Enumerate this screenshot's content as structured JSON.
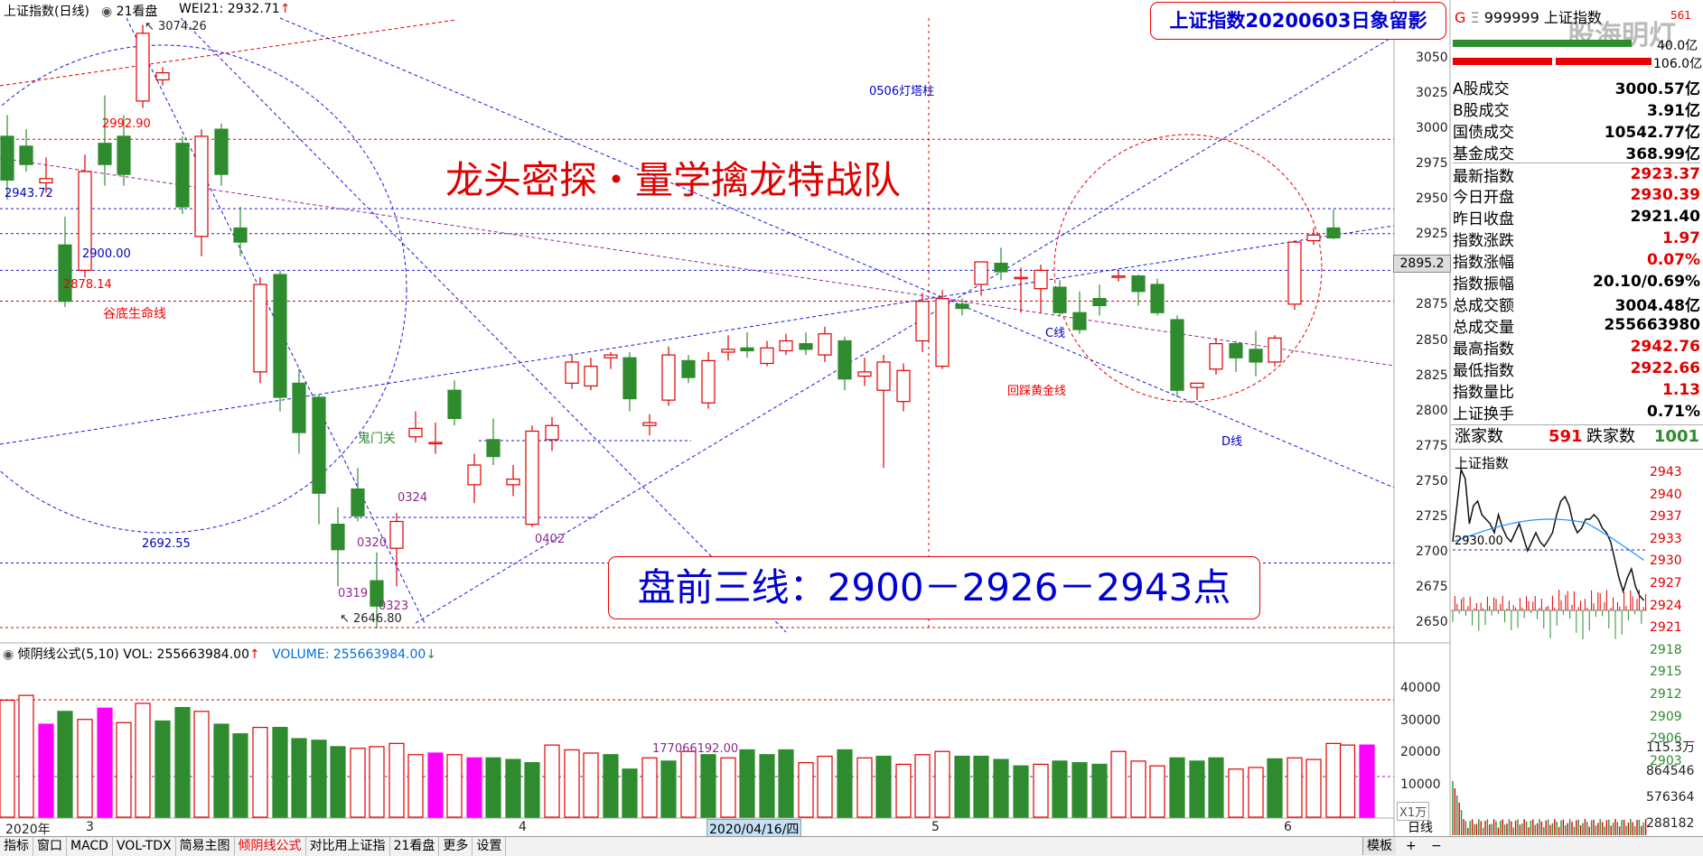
{
  "header": {
    "index_name": "上证指数(日线)",
    "period_label": "21看盘",
    "indicator": "WEI21: 2932.71",
    "indicator_arrow": "↑"
  },
  "title_box": "上证指数20200603日象留影",
  "watermark": "股海明灯",
  "banner_text": "龙头密探・量学擒龙特战队",
  "lines_box": "盘前三线：2900－2926－2943点",
  "annotations": {
    "high_label": "3074.26",
    "p2992": "2992.90",
    "p2943": "2943.72",
    "p2900": "2900.00",
    "p2878": "2878.14",
    "gudi": "谷底生命线",
    "guimen": "鬼门关",
    "p2692": "2692.55",
    "low_label": "2646.80",
    "d0319": "0319",
    "d0320": "0320",
    "d0323": "0323",
    "d0324": "0324",
    "d0402": "0402",
    "lighthouse": "0506灯塔柱",
    "huicai": "回踩黄金线",
    "c_line": "C线",
    "d_line": "D线"
  },
  "price_axis": {
    "ticks": [
      "3050",
      "3025",
      "3000",
      "2975",
      "2950",
      "2925",
      "2900",
      "2875",
      "2850",
      "2825",
      "2800",
      "2775",
      "2750",
      "2725",
      "2700",
      "2675",
      "2650"
    ],
    "current_price": "2895.2"
  },
  "volume_panel": {
    "title": "倾阴线公式(5,10)",
    "vol_label": "VOL: 255663984.00",
    "vol_arrow": "↑",
    "volume_label": "VOLUME: 255663984.00",
    "volume_arrow": "↓",
    "avg_label": "177066192.00",
    "ticks": [
      "40000",
      "30000",
      "20000",
      "10000"
    ],
    "unit": "X1万"
  },
  "date_axis": {
    "year": "2020年",
    "m3": "3",
    "m4": "4",
    "m5": "5",
    "m6": "6",
    "cursor_date": "2020/04/16/四"
  },
  "info_panel": {
    "code_prefix": "G",
    "code_e": "Ξ",
    "code": "999999",
    "name": "上证指数",
    "ratio": "561",
    "top_values": [
      "40.0亿",
      "106.0亿"
    ],
    "rows": [
      {
        "label": "A股成交",
        "value": "3000.57亿",
        "color": "#000"
      },
      {
        "label": "B股成交",
        "value": "3.91亿",
        "color": "#000"
      },
      {
        "label": "国债成交",
        "value": "10542.77亿",
        "color": "#000"
      },
      {
        "label": "基金成交",
        "value": "368.99亿",
        "color": "#000"
      },
      {
        "label": "最新指数",
        "value": "2923.37",
        "color": "#e00000"
      },
      {
        "label": "今日开盘",
        "value": "2930.39",
        "color": "#e00000"
      },
      {
        "label": "昨日收盘",
        "value": "2921.40",
        "color": "#000"
      },
      {
        "label": "指数涨跌",
        "value": "1.97",
        "color": "#e00000"
      },
      {
        "label": "指数涨幅",
        "value": "0.07%",
        "color": "#e00000"
      },
      {
        "label": "指数振幅",
        "value": "20.10/0.69%",
        "color": "#000"
      },
      {
        "label": "总成交额",
        "value": "3004.48亿",
        "color": "#000"
      },
      {
        "label": "总成交量",
        "value": "255663980",
        "color": "#000"
      },
      {
        "label": "最高指数",
        "value": "2942.76",
        "color": "#e00000"
      },
      {
        "label": "最低指数",
        "value": "2922.66",
        "color": "#e00000"
      },
      {
        "label": "指数量比",
        "value": "1.13",
        "color": "#e00000"
      },
      {
        "label": "上证换手",
        "value": "0.71%",
        "color": "#000"
      }
    ],
    "rise_label": "涨家数",
    "rise_value": "591",
    "fall_label": "跌家数",
    "fall_value": "1001"
  },
  "intraday": {
    "title": "上证指数",
    "price_ticks": [
      "2943",
      "2940",
      "2937",
      "2933",
      "2930",
      "2927",
      "2924",
      "2921",
      "2918",
      "2915",
      "2912",
      "2909",
      "2906",
      "2903"
    ],
    "ref_label": "2930.00",
    "vol_ticks": [
      "115.3万",
      "864546",
      "576364",
      "288182"
    ]
  },
  "menu": [
    "指标",
    "窗口",
    "MACD",
    "VOL-TDX",
    "简易主图",
    "倾阴线公式",
    "对比用上证指",
    "21看盘",
    "更多",
    "设置"
  ],
  "bottom_right": {
    "label": "模板",
    "period": "日线",
    "plus": "+",
    "minus": "−"
  },
  "colors": {
    "up": "#e00000",
    "down": "#2e8b2e",
    "blue_line": "#1a1adc",
    "magenta": "#ff00ff",
    "purple": "#8e2a8e"
  }
}
